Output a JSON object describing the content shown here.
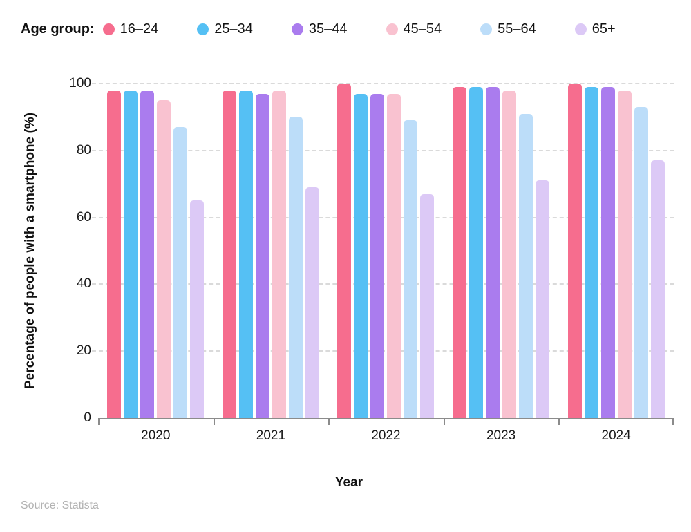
{
  "legend": {
    "title": "Age group:"
  },
  "chart_data": {
    "type": "bar",
    "title": "",
    "xlabel": "Year",
    "ylabel": "Percentage of people with a smartphone (%)",
    "categories": [
      "2020",
      "2021",
      "2022",
      "2023",
      "2024"
    ],
    "series": [
      {
        "name": "16–24",
        "color": "#F66D8E",
        "values": [
          98,
          98,
          100,
          99,
          100
        ]
      },
      {
        "name": "25–34",
        "color": "#55C0F4",
        "values": [
          98,
          98,
          97,
          99,
          99
        ]
      },
      {
        "name": "35–44",
        "color": "#AA7CEE",
        "values": [
          98,
          97,
          97,
          99,
          99
        ]
      },
      {
        "name": "45–54",
        "color": "#F9C2D0",
        "values": [
          95,
          98,
          97,
          98,
          98
        ]
      },
      {
        "name": "55–64",
        "color": "#BCDDF9",
        "values": [
          87,
          90,
          89,
          91,
          93
        ]
      },
      {
        "name": "65+",
        "color": "#DCC9F6",
        "values": [
          65,
          69,
          67,
          71,
          77
        ]
      }
    ],
    "ylim": [
      0,
      100
    ],
    "yticks": [
      0,
      20,
      40,
      60,
      80,
      100
    ],
    "grid": "dashed-horizontal",
    "legend_position": "top-left"
  },
  "footer": {
    "source": "Source: Statista"
  }
}
